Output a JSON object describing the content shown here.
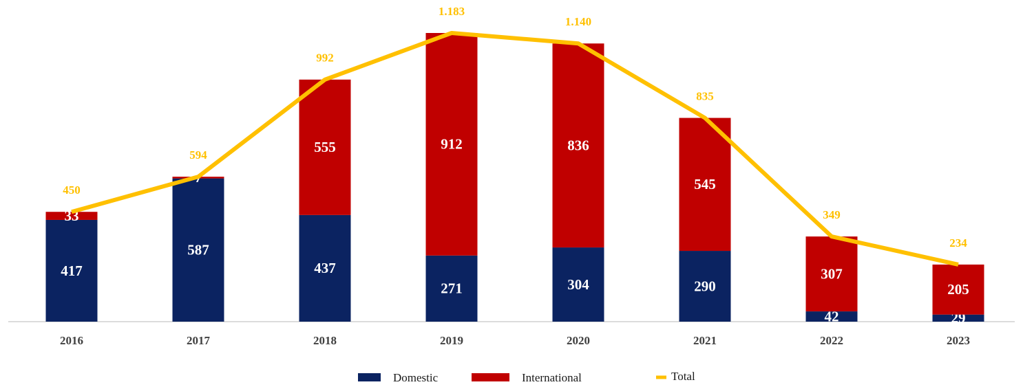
{
  "chart_data": {
    "type": "bar",
    "categories": [
      "2016",
      "2017",
      "2018",
      "2019",
      "2020",
      "2021",
      "2022",
      "2023"
    ],
    "stacked": true,
    "series": [
      {
        "name": "Domestic",
        "color": "#0b2361",
        "values": [
          417,
          587,
          437,
          271,
          304,
          290,
          42,
          29
        ]
      },
      {
        "name": "International",
        "color": "#c00000",
        "values": [
          33,
          7,
          555,
          912,
          836,
          545,
          307,
          205
        ]
      },
      {
        "name": "Total",
        "type": "line",
        "color": "#ffc000",
        "values": [
          450,
          594,
          992,
          1183,
          1140,
          835,
          349,
          234
        ],
        "value_labels": [
          "450",
          "594",
          "992",
          "1.183",
          "1.140",
          "835",
          "349",
          "234"
        ]
      }
    ],
    "legend": "bottom"
  }
}
